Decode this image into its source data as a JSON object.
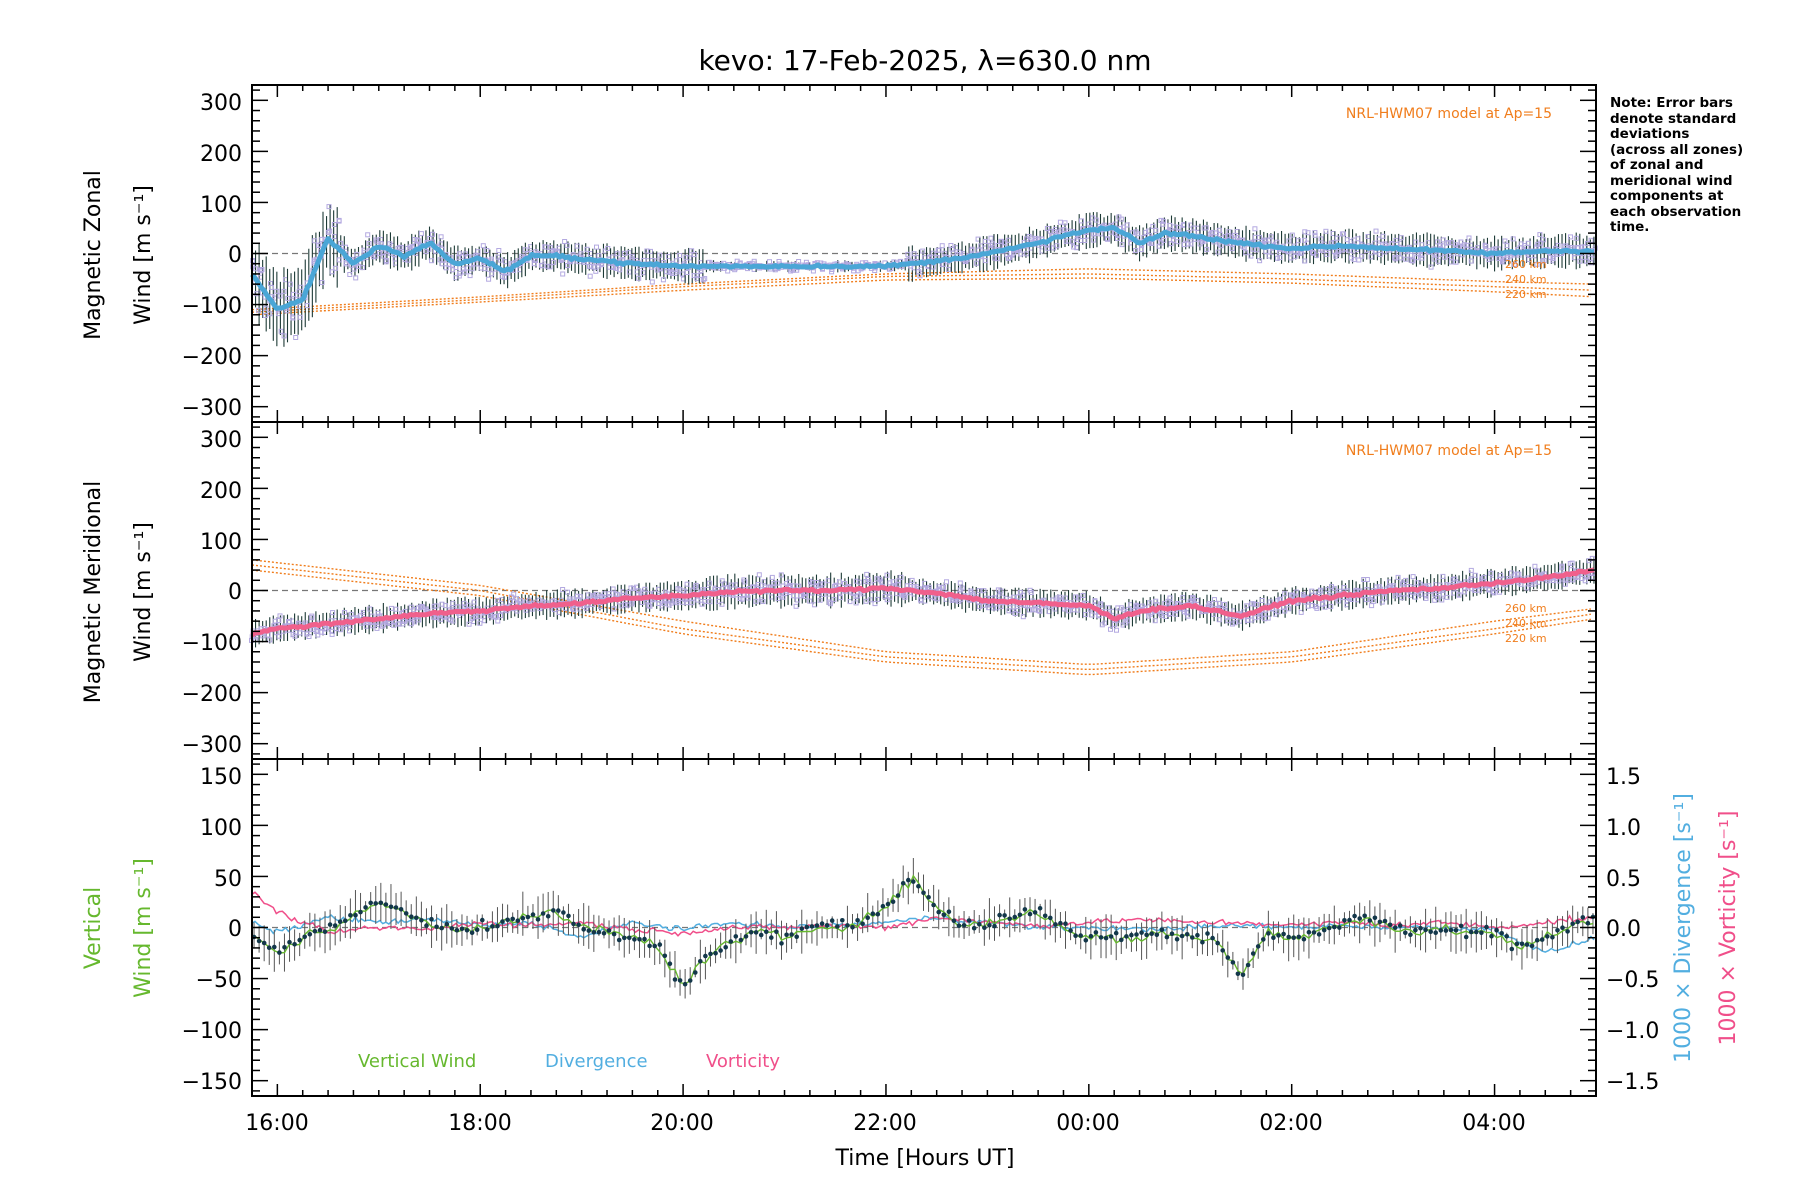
{
  "chart_data": [
    {
      "type": "line",
      "title": "kevo: 17-Feb-2025, λ=630.0 nm",
      "ylabel_lines": [
        "Magnetic Zonal",
        "Wind [m s⁻¹]"
      ],
      "xlabel": "",
      "xlim": [
        15.75,
        29.0
      ],
      "ylim": [
        -330,
        330
      ],
      "yticks": [
        "300",
        "200",
        "100",
        "0",
        "−100",
        "−200",
        "−300"
      ],
      "model_annotation": "NRL-HWM07 model at Ap=15",
      "model_labels": [
        "260 km",
        "240 km",
        "220 km"
      ],
      "series": [
        {
          "name": "Magnetic Zonal Wind (mean)",
          "x": [
            15.75,
            16.0,
            16.25,
            16.5,
            16.75,
            17.0,
            17.25,
            17.5,
            17.75,
            18.0,
            18.25,
            18.5,
            18.75,
            19.0,
            19.5,
            20.0,
            20.5,
            21.0,
            21.5,
            22.0,
            22.5,
            23.0,
            23.5,
            23.75,
            24.0,
            24.25,
            24.5,
            24.75,
            25.0,
            25.5,
            26.0,
            26.5,
            27.0,
            27.5,
            28.0,
            28.5,
            29.0
          ],
          "values": [
            -40,
            -110,
            -90,
            30,
            -20,
            15,
            -5,
            20,
            -20,
            -10,
            -35,
            -5,
            -5,
            -10,
            -20,
            -25,
            -25,
            -25,
            -25,
            -25,
            -15,
            0,
            20,
            35,
            45,
            50,
            20,
            40,
            35,
            20,
            10,
            15,
            10,
            5,
            0,
            5,
            5
          ]
        },
        {
          "name": "NRL-HWM07 260 km",
          "x": [
            15.75,
            18,
            20,
            22,
            24,
            26,
            28,
            29
          ],
          "values": [
            -110,
            -85,
            -60,
            -40,
            -30,
            -40,
            -55,
            -60
          ]
        },
        {
          "name": "NRL-HWM07 240 km",
          "x": [
            15.75,
            18,
            20,
            22,
            24,
            26,
            28,
            29
          ],
          "values": [
            -115,
            -90,
            -65,
            -45,
            -40,
            -50,
            -65,
            -72
          ]
        },
        {
          "name": "NRL-HWM07 220 km",
          "x": [
            15.75,
            18,
            20,
            22,
            24,
            26,
            28,
            29
          ],
          "values": [
            -120,
            -95,
            -72,
            -52,
            -48,
            -58,
            -75,
            -85
          ]
        }
      ]
    },
    {
      "type": "line",
      "ylabel_lines": [
        "Magnetic Meridional",
        "Wind [m s⁻¹]"
      ],
      "xlim": [
        15.75,
        29.0
      ],
      "ylim": [
        -330,
        330
      ],
      "yticks": [
        "300",
        "200",
        "100",
        "0",
        "−100",
        "−200",
        "−300"
      ],
      "model_annotation": "NRL-HWM07 model at Ap=15",
      "model_labels": [
        "260 km",
        "240 km",
        "220 km"
      ],
      "series": [
        {
          "name": "Magnetic Meridional Wind (mean)",
          "x": [
            15.75,
            16.0,
            16.5,
            17.0,
            17.5,
            18.0,
            18.5,
            19.0,
            19.5,
            20.0,
            20.5,
            21.0,
            21.5,
            22.0,
            22.5,
            23.0,
            23.5,
            24.0,
            24.25,
            24.5,
            25.0,
            25.5,
            26.0,
            26.5,
            27.0,
            27.5,
            28.0,
            28.5,
            29.0
          ],
          "values": [
            -85,
            -75,
            -65,
            -55,
            -45,
            -40,
            -30,
            -25,
            -15,
            -10,
            -2,
            0,
            0,
            5,
            -5,
            -20,
            -25,
            -30,
            -55,
            -40,
            -30,
            -50,
            -20,
            -10,
            0,
            5,
            15,
            25,
            40
          ]
        },
        {
          "name": "NRL-HWM07 260 km",
          "x": [
            15.75,
            18,
            20,
            22,
            24,
            26,
            28,
            29
          ],
          "values": [
            60,
            10,
            -60,
            -120,
            -145,
            -120,
            -60,
            -35
          ]
        },
        {
          "name": "NRL-HWM07 240 km",
          "x": [
            15.75,
            18,
            20,
            22,
            24,
            26,
            28,
            29
          ],
          "values": [
            50,
            0,
            -75,
            -130,
            -155,
            -130,
            -75,
            -45
          ]
        },
        {
          "name": "NRL-HWM07 220 km",
          "x": [
            15.75,
            18,
            20,
            22,
            24,
            26,
            28,
            29
          ],
          "values": [
            40,
            -10,
            -85,
            -140,
            -165,
            -140,
            -85,
            -55
          ]
        }
      ]
    },
    {
      "type": "line",
      "xlabel": "Time [Hours UT]",
      "xlim": [
        15.75,
        29.0
      ],
      "xticks": [
        "16:00",
        "18:00",
        "20:00",
        "22:00",
        "00:00",
        "02:00",
        "04:00"
      ],
      "ylim": [
        -165,
        165
      ],
      "yticks": [
        "150",
        "100",
        "50",
        "0",
        "−50",
        "−100",
        "−150"
      ],
      "ylabel_left": [
        "Vertical",
        "Wind [m s⁻¹]"
      ],
      "y2lim": [
        -1.65,
        1.65
      ],
      "y2ticks": [
        "1.5",
        "1.0",
        "0.5",
        "0.0",
        "−0.5",
        "−1.0",
        "−1.5"
      ],
      "y2labels": [
        "1000 × Divergence [s⁻¹]",
        "1000 × Vorticity [s⁻¹]"
      ],
      "legend": [
        "Vertical Wind",
        "Divergence",
        "Vorticity"
      ],
      "series": [
        {
          "name": "Vertical Wind",
          "x": [
            15.75,
            16.0,
            16.25,
            16.5,
            16.75,
            17.0,
            17.25,
            17.5,
            17.75,
            18.0,
            18.25,
            18.5,
            18.75,
            19.0,
            19.25,
            19.5,
            19.75,
            20.0,
            20.25,
            20.5,
            20.75,
            21.0,
            21.25,
            21.5,
            21.75,
            22.0,
            22.25,
            22.5,
            22.75,
            23.0,
            23.25,
            23.5,
            23.75,
            24.0,
            24.25,
            24.5,
            24.75,
            25.0,
            25.25,
            25.5,
            25.75,
            26.0,
            26.25,
            26.5,
            26.75,
            27.0,
            27.25,
            27.5,
            27.75,
            28.0,
            28.25,
            28.5,
            28.75,
            29.0
          ],
          "values": [
            -10,
            -25,
            -10,
            0,
            10,
            25,
            15,
            5,
            0,
            0,
            5,
            10,
            15,
            0,
            -5,
            -10,
            -15,
            -60,
            -25,
            -15,
            -5,
            -10,
            0,
            0,
            5,
            20,
            48,
            20,
            0,
            5,
            10,
            15,
            0,
            -10,
            -10,
            -10,
            -5,
            -10,
            -10,
            -50,
            -5,
            -10,
            -5,
            5,
            10,
            0,
            -5,
            0,
            -5,
            -5,
            -20,
            -10,
            0,
            10
          ]
        },
        {
          "name": "Divergence",
          "x": [
            15.75,
            16.0,
            16.5,
            17.0,
            17.5,
            18.0,
            18.5,
            19.0,
            19.5,
            20.0,
            20.5,
            21.0,
            21.5,
            22.0,
            22.5,
            23.0,
            23.5,
            24.0,
            24.5,
            25.0,
            25.5,
            26.0,
            26.5,
            27.0,
            27.5,
            28.0,
            28.5,
            29.0
          ],
          "values": [
            0.05,
            -0.05,
            0.1,
            0.05,
            0.08,
            0.02,
            0.05,
            -0.1,
            0.05,
            -0.02,
            0.05,
            0.0,
            0.02,
            0.05,
            0.1,
            0.05,
            0.0,
            0.0,
            -0.02,
            0.0,
            0.02,
            0.0,
            0.02,
            0.0,
            0.0,
            -0.02,
            -0.25,
            -0.1
          ]
        },
        {
          "name": "Vorticity",
          "x": [
            15.75,
            16.0,
            16.5,
            17.0,
            17.5,
            18.0,
            18.5,
            19.0,
            19.5,
            20.0,
            20.5,
            21.0,
            21.5,
            22.0,
            22.5,
            23.0,
            23.5,
            24.0,
            24.5,
            25.0,
            25.5,
            26.0,
            26.5,
            27.0,
            27.5,
            28.0,
            28.5,
            29.0
          ],
          "values": [
            0.35,
            0.15,
            -0.05,
            0.0,
            -0.02,
            0.05,
            0.02,
            0.05,
            -0.02,
            -0.05,
            0.0,
            0.0,
            0.02,
            0.0,
            0.1,
            0.05,
            0.02,
            0.05,
            0.08,
            0.05,
            0.05,
            0.02,
            0.05,
            0.02,
            0.05,
            0.0,
            0.05,
            0.1
          ]
        }
      ]
    }
  ],
  "note": {
    "lines": [
      "Note: Error bars",
      "denote standard",
      "deviations",
      "(across all zones)",
      "of zonal and",
      "meridional wind",
      "components at",
      "each observation",
      "time."
    ]
  },
  "colors": {
    "zonal": "#4aa6d6",
    "meridional": "#f0608c",
    "scatter": "#b3a9e0",
    "model": "#f07d1c",
    "vertical": "#66b82e",
    "divergence": "#52aee0",
    "vorticity": "#f04f8a",
    "errorbar": "#1d3a36",
    "vdot": "#13374a"
  }
}
